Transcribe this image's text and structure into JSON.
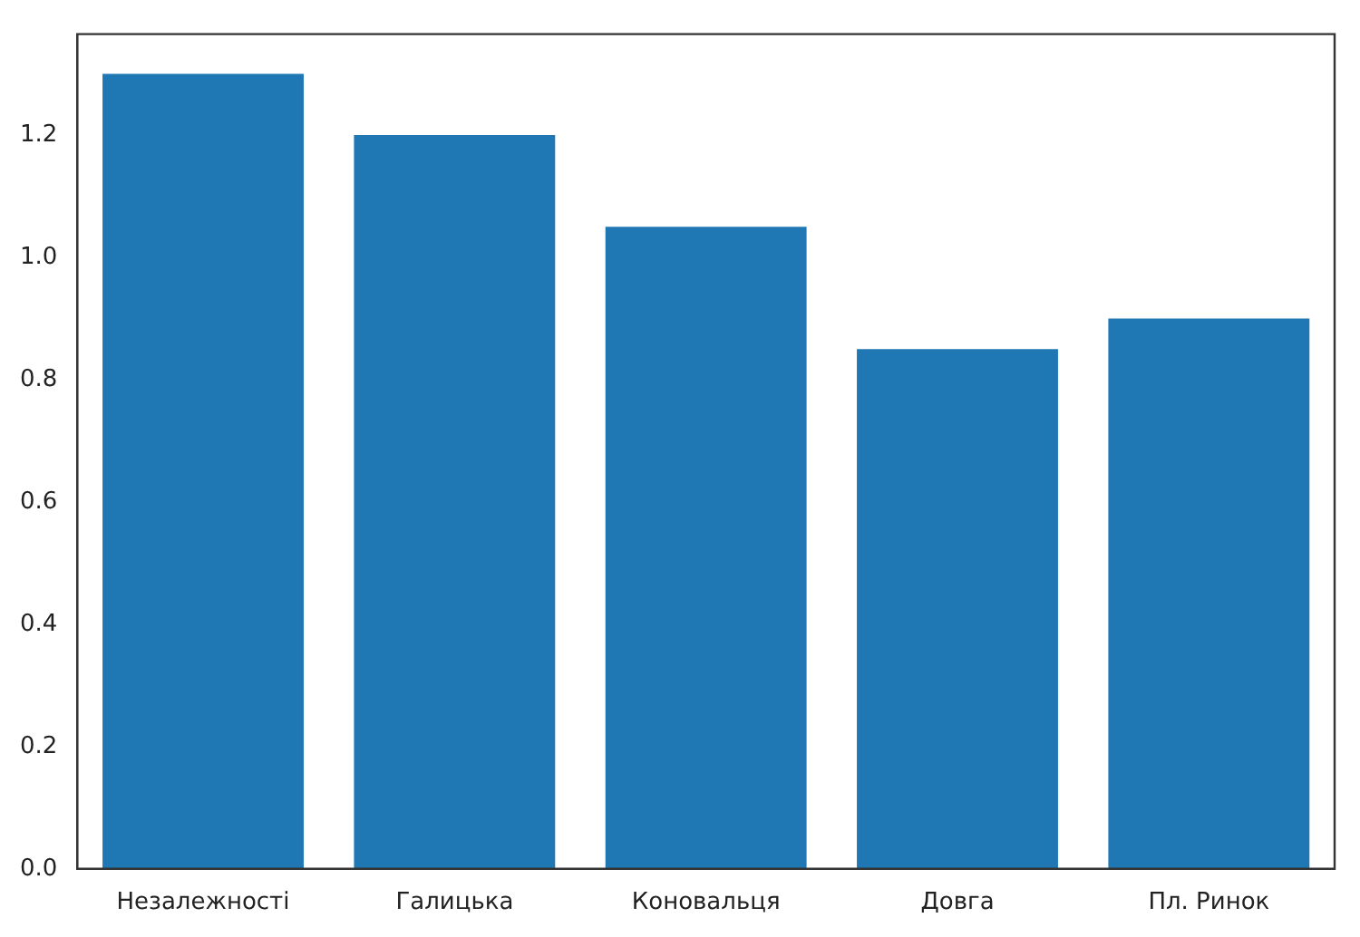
{
  "chart_data": {
    "type": "bar",
    "categories": [
      "Незалежності",
      "Галицька",
      "Коновальця",
      "Довга",
      "Пл. Ринок"
    ],
    "values": [
      1.3,
      1.2,
      1.05,
      0.85,
      0.9
    ],
    "color": "#1f77b4",
    "ylim": [
      0,
      1.365
    ],
    "yticks": [
      {
        "value": 0,
        "label": "0.0"
      },
      {
        "value": 0.2,
        "label": "0.2"
      },
      {
        "value": 0.4,
        "label": "0.4"
      },
      {
        "value": 0.6,
        "label": "0.6"
      },
      {
        "value": 0.8,
        "label": "0.8"
      },
      {
        "value": 1,
        "label": "1.0"
      },
      {
        "value": 1.2,
        "label": "1.2"
      }
    ],
    "grid": false,
    "legend": false
  }
}
